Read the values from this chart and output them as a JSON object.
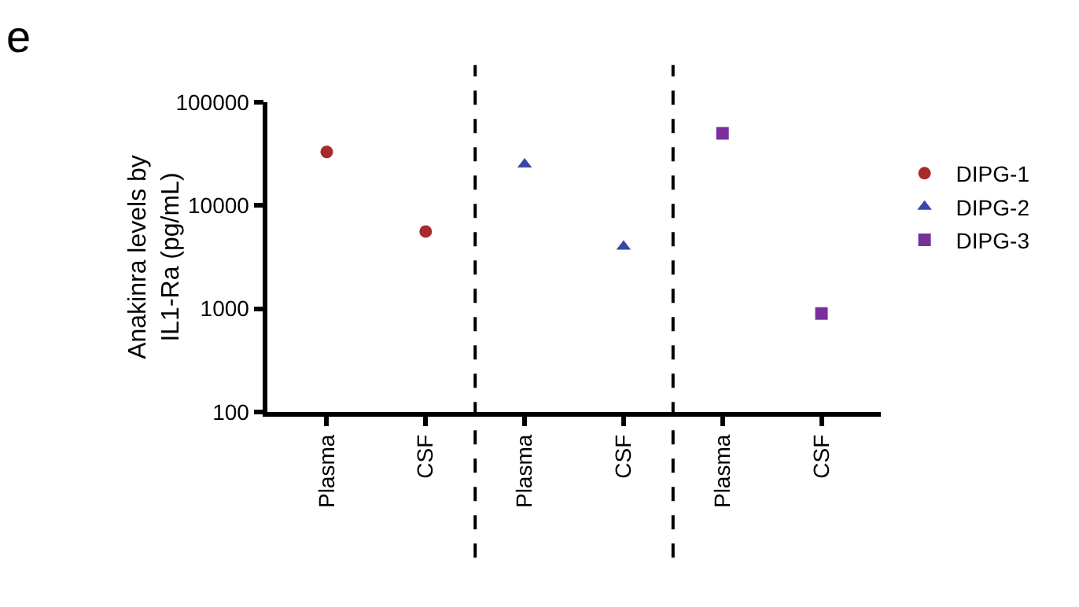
{
  "chart_data": {
    "type": "scatter",
    "ylabel": "Anakinra levels by IL1-Ra (pg/mL)",
    "annotations": [
      "e"
    ],
    "categories": [
      "Plasma",
      "CSF",
      "Plasma",
      "CSF",
      "Plasma",
      "CSF"
    ],
    "log": "y",
    "ylim": [
      100,
      100000
    ],
    "yticks": [
      100,
      1000,
      10000,
      100000
    ],
    "grid": false,
    "legend": "right",
    "series": [
      {
        "name": "DIPG-1",
        "color": "#a82a2a",
        "marker": "circle",
        "values": [
          33000,
          5600,
          null,
          null,
          null,
          null
        ]
      },
      {
        "name": "DIPG-2",
        "color": "#3548a8",
        "marker": "triangle",
        "values": [
          null,
          null,
          25000,
          4000,
          null,
          null
        ]
      },
      {
        "name": "DIPG-3",
        "color": "#7a2f9e",
        "marker": "square",
        "values": [
          null,
          null,
          null,
          null,
          50000,
          900
        ]
      }
    ]
  }
}
